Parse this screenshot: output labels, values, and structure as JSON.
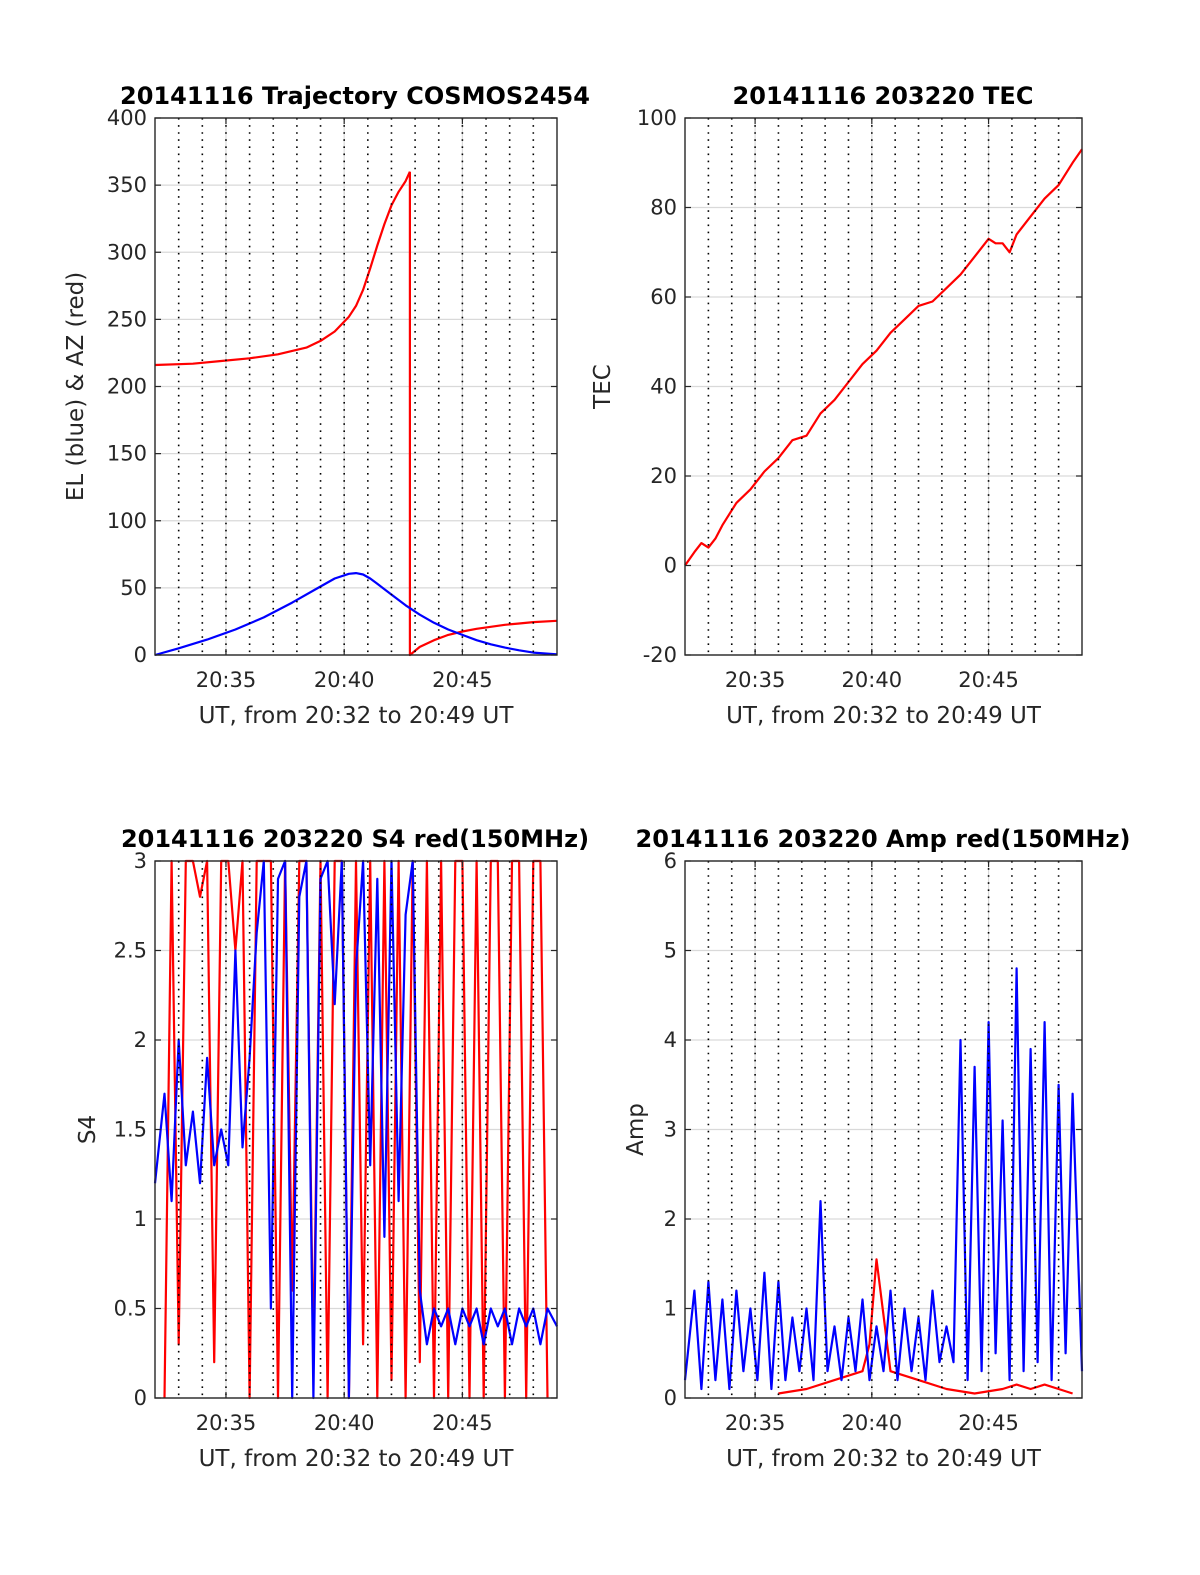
{
  "colors": {
    "red": "#ff0000",
    "blue": "#0000ff",
    "grid": "#d9d9d9",
    "axis": "#262626"
  },
  "chart_data": [
    {
      "type": "line",
      "title": "20141116 Trajectory COSMOS2454",
      "xlabel": "UT, from 20:32 to 20:49 UT",
      "ylabel": "EL (blue) & AZ (red)",
      "xlim": [
        20.5333,
        20.8167
      ],
      "ylim": [
        0,
        400
      ],
      "xticks": [
        "20:35",
        "20:40",
        "20:45"
      ],
      "yticks": [
        "0",
        "50",
        "100",
        "150",
        "200",
        "250",
        "300",
        "350",
        "400"
      ],
      "grid": true,
      "series": [
        {
          "color": "red",
          "x": [
            20.5333,
            20.56,
            20.58,
            20.6,
            20.62,
            20.64,
            20.65,
            20.66,
            20.67,
            20.675,
            20.68,
            20.685,
            20.69,
            20.695,
            20.7,
            20.705,
            20.71,
            20.713
          ],
          "y": [
            216,
            217,
            219,
            221,
            224,
            229,
            234,
            241,
            252,
            260,
            272,
            288,
            305,
            321,
            335,
            345,
            353,
            360
          ]
        },
        {
          "color": "red",
          "x": [
            20.713,
            20.713,
            20.72,
            20.73,
            20.74,
            20.75,
            20.76,
            20.77,
            20.78,
            20.79,
            20.8,
            20.8167
          ],
          "y": [
            360,
            0,
            6,
            11,
            15,
            17.5,
            19.5,
            21,
            22.5,
            23.5,
            24.5,
            25.5
          ]
        },
        {
          "color": "blue",
          "x": [
            20.5333,
            20.55,
            20.57,
            20.59,
            20.61,
            20.63,
            20.65,
            20.66,
            20.67,
            20.675,
            20.68,
            20.685,
            20.69,
            20.7,
            20.71,
            20.72,
            20.73,
            20.74,
            20.75,
            20.76,
            20.77,
            20.78,
            20.79,
            20.8,
            20.8167
          ],
          "y": [
            0,
            5,
            11.5,
            19,
            28,
            39,
            51,
            57,
            60.5,
            61,
            60,
            57,
            53,
            45,
            37,
            30,
            24,
            19,
            15,
            11,
            8,
            5.5,
            3.5,
            1.8,
            0.5
          ]
        }
      ]
    },
    {
      "type": "line",
      "title": "20141116 203220 TEC",
      "xlabel": "UT, from 20:32 to 20:49 UT",
      "ylabel": "TEC",
      "xlim": [
        20.5333,
        20.8167
      ],
      "ylim": [
        -20,
        100
      ],
      "xticks": [
        "20:35",
        "20:40",
        "20:45"
      ],
      "yticks": [
        "-20",
        "0",
        "20",
        "40",
        "60",
        "80",
        "100"
      ],
      "grid": true,
      "series": [
        {
          "color": "red",
          "x": [
            20.5333,
            20.54,
            20.545,
            20.55,
            20.555,
            20.56,
            20.57,
            20.58,
            20.59,
            20.6,
            20.61,
            20.62,
            20.63,
            20.64,
            20.65,
            20.66,
            20.67,
            20.68,
            20.69,
            20.7,
            20.71,
            20.72,
            20.73,
            20.74,
            20.75,
            20.755,
            20.76,
            20.765,
            20.77,
            20.78,
            20.79,
            20.8,
            20.81,
            20.8167
          ],
          "y": [
            0,
            3,
            5,
            4,
            6,
            9,
            14,
            17,
            21,
            24,
            28,
            29,
            34,
            37,
            41,
            45,
            48,
            52,
            55,
            58,
            59,
            62,
            65,
            69,
            73,
            72,
            72,
            70,
            74,
            78,
            82,
            85,
            90,
            93
          ]
        }
      ]
    },
    {
      "type": "line",
      "title": "20141116 203220 S4 red(150MHz)",
      "xlabel": "UT, from 20:32 to 20:49 UT",
      "ylabel": "S4",
      "xlim": [
        20.5333,
        20.8167
      ],
      "ylim": [
        0,
        3
      ],
      "xticks": [
        "20:35",
        "20:40",
        "20:45"
      ],
      "yticks": [
        "0",
        "0.5",
        "1",
        "1.5",
        "2",
        "2.5",
        "3"
      ],
      "grid": true,
      "series": [
        {
          "color": "red",
          "x": [
            20.54,
            20.545,
            20.55,
            20.555,
            20.56,
            20.565,
            20.57,
            20.575,
            20.58,
            20.585,
            20.59,
            20.595,
            20.6,
            20.605,
            20.61,
            20.615,
            20.62,
            20.625,
            20.63,
            20.635,
            20.64,
            20.645,
            20.65,
            20.655,
            20.66,
            20.665,
            20.67,
            20.675,
            20.68,
            20.685,
            20.69,
            20.695,
            20.7,
            20.705,
            20.71,
            20.715,
            20.72,
            20.725,
            20.73,
            20.735,
            20.74,
            20.745,
            20.75,
            20.755,
            20.76,
            20.765,
            20.77,
            20.775,
            20.78,
            20.785,
            20.79,
            20.795,
            20.8,
            20.805,
            20.81
          ],
          "y": [
            0,
            3,
            0.3,
            3,
            3,
            2.8,
            3,
            0.2,
            3,
            3,
            2.5,
            3,
            0,
            3,
            3,
            3,
            0,
            3,
            0.6,
            3,
            3,
            0.2,
            3,
            0,
            3,
            3,
            0,
            3,
            0.3,
            3,
            0,
            3,
            0.1,
            3,
            0,
            3,
            0.2,
            3,
            0,
            3,
            0,
            3,
            3,
            0,
            3,
            0,
            3,
            3,
            0,
            3,
            3,
            0,
            3,
            3,
            0
          ]
        },
        {
          "color": "blue",
          "x": [
            20.5333,
            20.54,
            20.545,
            20.55,
            20.555,
            20.56,
            20.565,
            20.57,
            20.575,
            20.58,
            20.585,
            20.59,
            20.595,
            20.6,
            20.605,
            20.61,
            20.615,
            20.62,
            20.625,
            20.63,
            20.635,
            20.64,
            20.645,
            20.65,
            20.655,
            20.66,
            20.665,
            20.67,
            20.675,
            20.68,
            20.685,
            20.69,
            20.695,
            20.7,
            20.705,
            20.71,
            20.715,
            20.72,
            20.725,
            20.73,
            20.735,
            20.74,
            20.745,
            20.75,
            20.755,
            20.76,
            20.765,
            20.77,
            20.775,
            20.78,
            20.785,
            20.79,
            20.795,
            20.8,
            20.805,
            20.81,
            20.8167
          ],
          "y": [
            1.2,
            1.7,
            1.1,
            2.0,
            1.3,
            1.6,
            1.2,
            1.9,
            1.3,
            1.5,
            1.3,
            2.5,
            1.4,
            1.9,
            2.6,
            3,
            0.5,
            2.9,
            3,
            0,
            2.8,
            3,
            0,
            2.9,
            3,
            2.2,
            3,
            0,
            2.4,
            3,
            1.3,
            2.9,
            0.9,
            3,
            1.1,
            2.7,
            3,
            0.6,
            0.3,
            0.5,
            0.4,
            0.5,
            0.3,
            0.5,
            0.4,
            0.5,
            0.3,
            0.5,
            0.4,
            0.5,
            0.3,
            0.5,
            0.4,
            0.5,
            0.3,
            0.5,
            0.4
          ]
        }
      ]
    },
    {
      "type": "line",
      "title": "20141116 203220 Amp red(150MHz)",
      "xlabel": "UT, from 20:32 to 20:49 UT",
      "ylabel": "Amp",
      "xlim": [
        20.5333,
        20.8167
      ],
      "ylim": [
        0,
        6
      ],
      "xticks": [
        "20:35",
        "20:40",
        "20:45"
      ],
      "yticks": [
        "0",
        "1",
        "2",
        "3",
        "4",
        "5",
        "6"
      ],
      "grid": true,
      "series": [
        {
          "color": "red",
          "x": [
            20.6,
            20.62,
            20.64,
            20.66,
            20.665,
            20.67,
            20.68,
            20.7,
            20.72,
            20.74,
            20.76,
            20.77,
            20.78,
            20.79,
            20.8,
            20.81
          ],
          "y": [
            0.05,
            0.1,
            0.2,
            0.3,
            0.6,
            1.55,
            0.3,
            0.2,
            0.1,
            0.05,
            0.1,
            0.15,
            0.1,
            0.15,
            0.1,
            0.05
          ]
        },
        {
          "color": "blue",
          "x": [
            20.5333,
            20.54,
            20.545,
            20.55,
            20.555,
            20.56,
            20.565,
            20.57,
            20.575,
            20.58,
            20.585,
            20.59,
            20.595,
            20.6,
            20.605,
            20.61,
            20.615,
            20.62,
            20.625,
            20.63,
            20.635,
            20.64,
            20.645,
            20.65,
            20.655,
            20.66,
            20.665,
            20.67,
            20.675,
            20.68,
            20.685,
            20.69,
            20.695,
            20.7,
            20.705,
            20.71,
            20.715,
            20.72,
            20.725,
            20.73,
            20.735,
            20.74,
            20.745,
            20.75,
            20.755,
            20.76,
            20.765,
            20.77,
            20.775,
            20.78,
            20.785,
            20.79,
            20.795,
            20.8,
            20.805,
            20.81,
            20.8167
          ],
          "y": [
            0.2,
            1.2,
            0.1,
            1.3,
            0.2,
            1.1,
            0.1,
            1.2,
            0.3,
            1.0,
            0.2,
            1.4,
            0.1,
            1.3,
            0.2,
            0.9,
            0.3,
            1.0,
            0.2,
            2.2,
            0.3,
            0.8,
            0.2,
            0.9,
            0.3,
            1.1,
            0.2,
            0.8,
            0.3,
            1.2,
            0.2,
            1.0,
            0.3,
            0.9,
            0.2,
            1.2,
            0.4,
            0.8,
            0.4,
            4.0,
            0.2,
            3.7,
            0.3,
            4.2,
            0.5,
            3.1,
            0.2,
            4.8,
            0.3,
            3.9,
            0.4,
            4.2,
            0.2,
            3.5,
            0.5,
            3.4,
            0.3
          ]
        }
      ]
    }
  ]
}
